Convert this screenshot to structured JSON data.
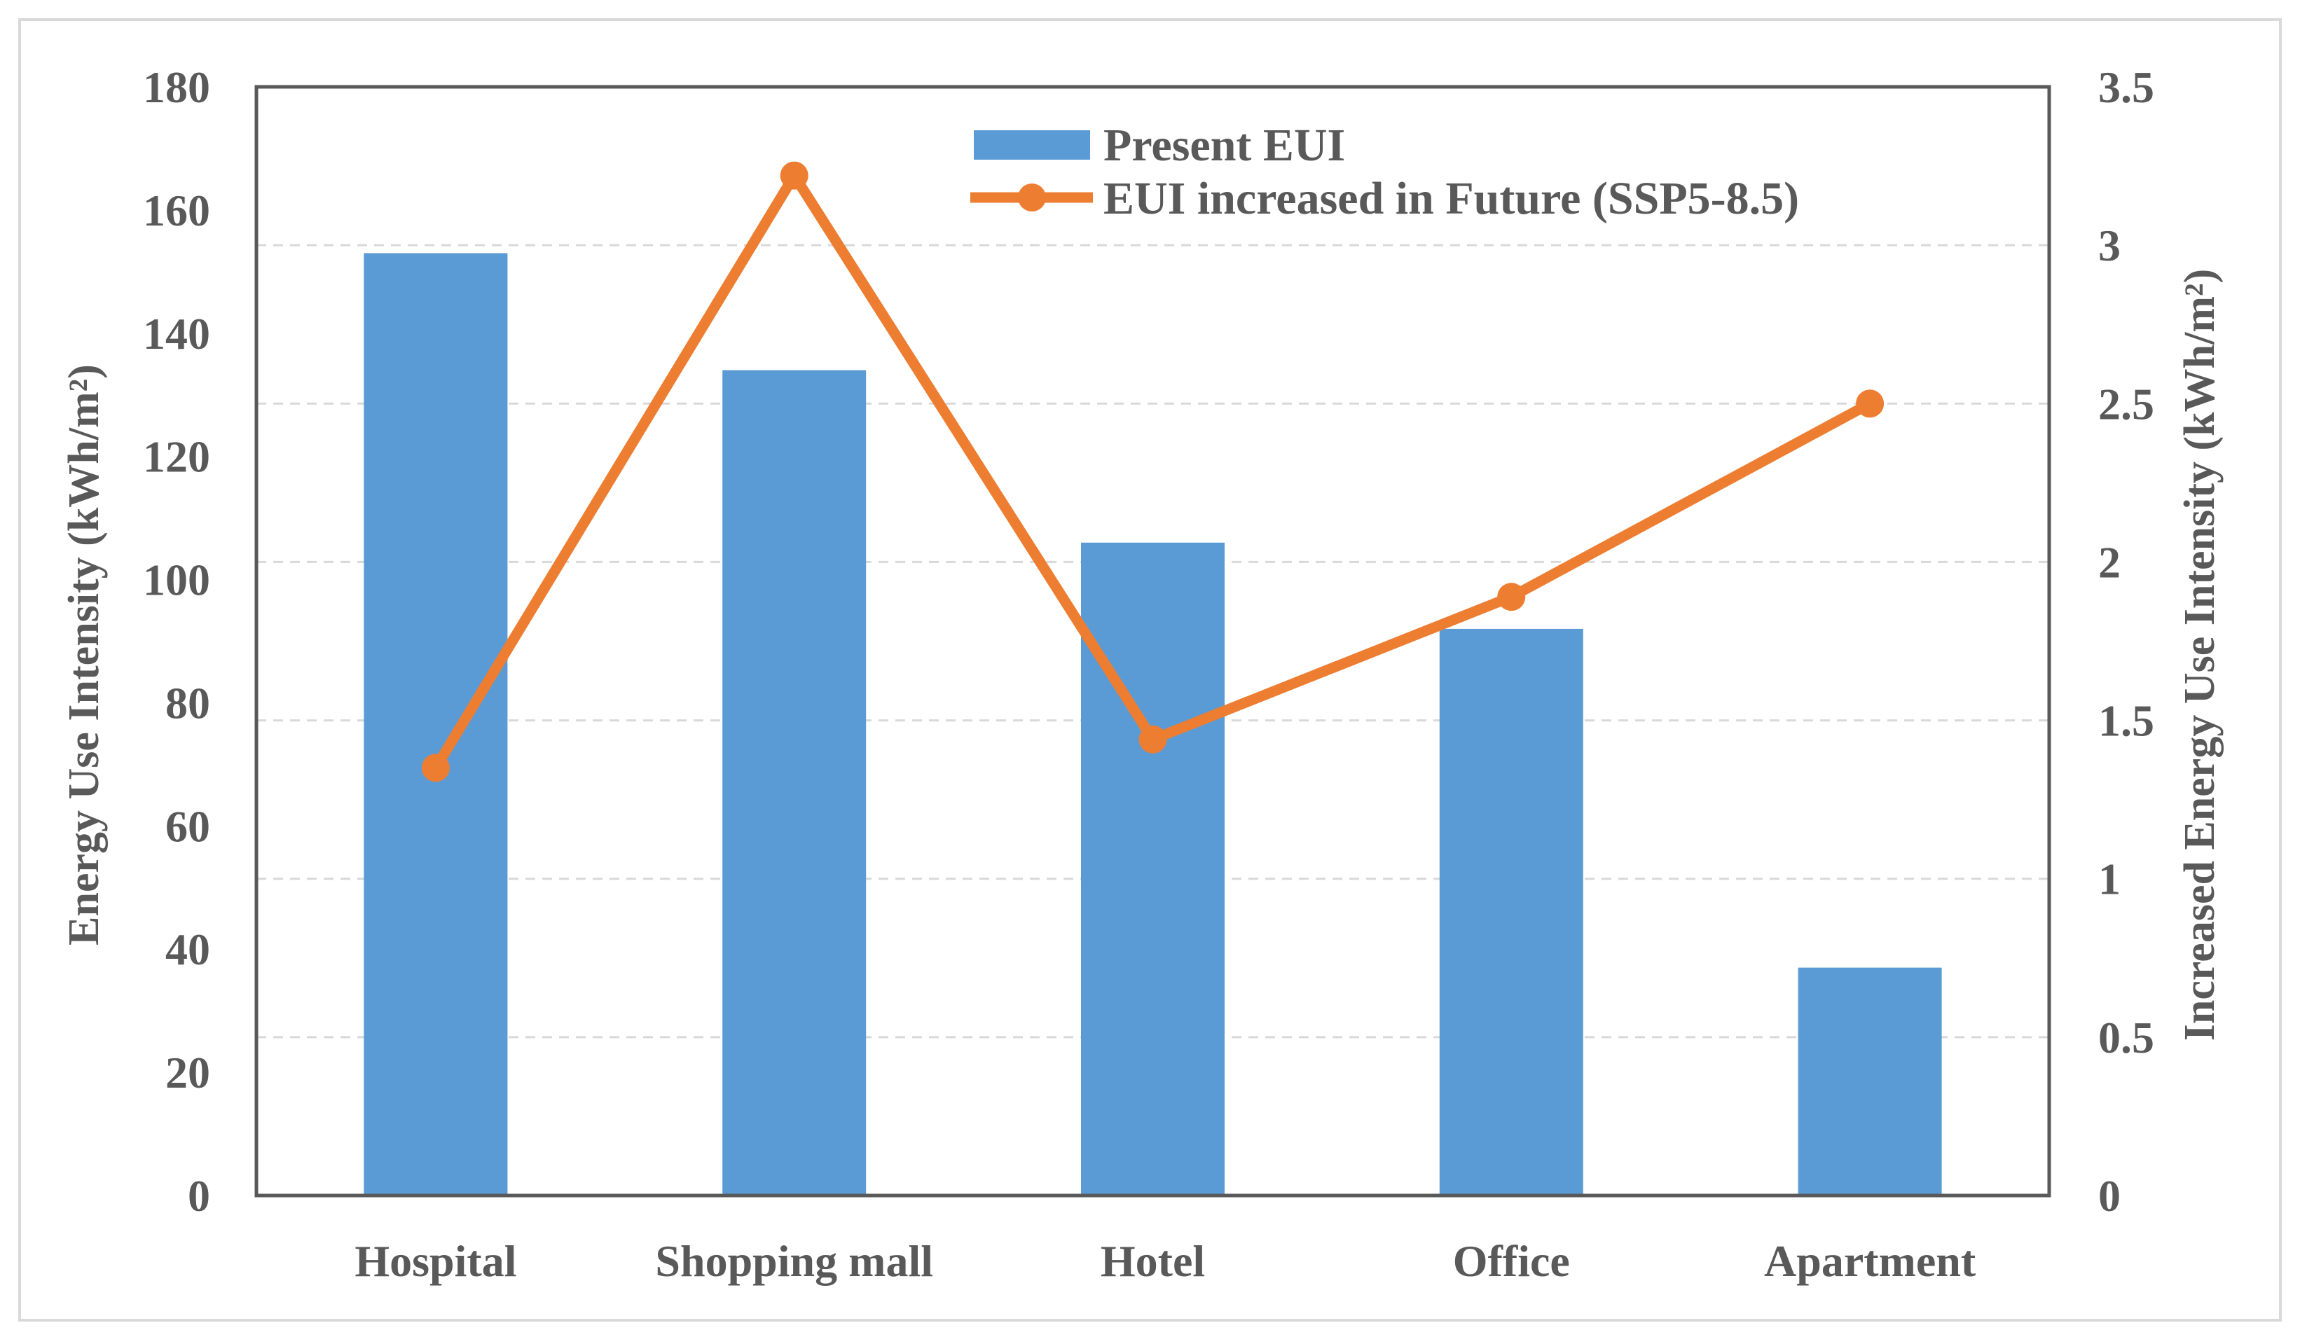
{
  "chart_data": {
    "type": "bar+line",
    "categories": [
      "Hospital",
      "Shopping mall",
      "Hotel",
      "Office",
      "Apartment"
    ],
    "series": [
      {
        "name": "Present EUI",
        "type": "bar",
        "axis": "left",
        "color": "#5b9bd5",
        "values": [
          153,
          134,
          106,
          92,
          37
        ]
      },
      {
        "name": "EUI increased in Future (SSP5-8.5)",
        "type": "line",
        "axis": "right",
        "color": "#ed7d31",
        "values": [
          1.35,
          3.22,
          1.44,
          1.89,
          2.5
        ]
      }
    ],
    "y_left": {
      "label": "Energy Use Intensity (kWh/m²)",
      "ylim": [
        0,
        180
      ],
      "ticks": [
        "0",
        "20",
        "40",
        "60",
        "80",
        "100",
        "120",
        "140",
        "160",
        "180"
      ]
    },
    "y_right": {
      "label": "Increased Energy Use Intensity (kWh/m²)",
      "ylim": [
        0,
        3.5
      ],
      "ticks": [
        "0",
        "0.5",
        "1",
        "1.5",
        "2",
        "2.5",
        "3",
        "3.5"
      ]
    },
    "grid": true,
    "legend_position": "top-center"
  }
}
